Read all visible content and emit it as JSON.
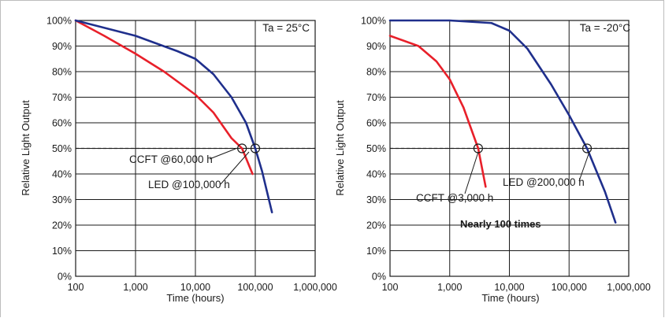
{
  "chart_data": [
    {
      "type": "line",
      "condition_label": "Ta = 25°C",
      "xlabel": "Time (hours)",
      "ylabel": "Relative Light Output",
      "x_scale": "log",
      "xlim": [
        100,
        1000000
      ],
      "ylim": [
        0,
        100
      ],
      "x_ticks": [
        100,
        1000,
        10000,
        100000,
        1000000
      ],
      "x_tick_labels": [
        "100",
        "1,000",
        "10,000",
        "100,000",
        "1,000,000"
      ],
      "y_ticks": [
        0,
        10,
        20,
        30,
        40,
        50,
        60,
        70,
        80,
        90,
        100
      ],
      "y_tick_labels": [
        "0%",
        "10%",
        "20%",
        "30%",
        "40%",
        "50%",
        "60%",
        "70%",
        "80%",
        "90%",
        "100%"
      ],
      "grid": true,
      "reference_line": {
        "y": 50,
        "style": "dashed"
      },
      "series": [
        {
          "name": "CCFT",
          "color": "#e8202a",
          "points": [
            [
              100,
              100
            ],
            [
              300,
              94
            ],
            [
              1000,
              87
            ],
            [
              3000,
              80
            ],
            [
              10000,
              71
            ],
            [
              20000,
              64
            ],
            [
              40000,
              54
            ],
            [
              60000,
              50
            ],
            [
              90000,
              40
            ]
          ]
        },
        {
          "name": "LED",
          "color": "#1f2f8c",
          "points": [
            [
              100,
              100
            ],
            [
              1000,
              94
            ],
            [
              5000,
              88
            ],
            [
              10000,
              85
            ],
            [
              20000,
              79
            ],
            [
              40000,
              70
            ],
            [
              70000,
              60
            ],
            [
              100000,
              50
            ],
            [
              130000,
              41
            ],
            [
              190000,
              25
            ]
          ]
        }
      ],
      "annotations": [
        {
          "text": "CCFT @60,000 h",
          "target": [
            60000,
            50
          ]
        },
        {
          "text": "LED @100,000 h",
          "target": [
            100000,
            50
          ]
        }
      ]
    },
    {
      "type": "line",
      "condition_label": "Ta = -20°C",
      "xlabel": "Time (hours)",
      "ylabel": "Relative Light Output",
      "x_scale": "log",
      "xlim": [
        100,
        1000000
      ],
      "ylim": [
        0,
        100
      ],
      "x_ticks": [
        100,
        1000,
        10000,
        100000,
        1000000
      ],
      "x_tick_labels": [
        "100",
        "1,000",
        "10,000",
        "100,000",
        "1,000,000"
      ],
      "y_ticks": [
        0,
        10,
        20,
        30,
        40,
        50,
        60,
        70,
        80,
        90,
        100
      ],
      "y_tick_labels": [
        "0%",
        "10%",
        "20%",
        "30%",
        "40%",
        "50%",
        "60%",
        "70%",
        "80%",
        "90%",
        "100%"
      ],
      "grid": true,
      "reference_line": {
        "y": 50,
        "style": "dashed"
      },
      "series": [
        {
          "name": "CCFT",
          "color": "#e8202a",
          "points": [
            [
              100,
              94
            ],
            [
              300,
              90
            ],
            [
              600,
              84
            ],
            [
              1000,
              77
            ],
            [
              1700,
              66
            ],
            [
              3000,
              50
            ],
            [
              4000,
              35
            ]
          ]
        },
        {
          "name": "LED",
          "color": "#1f2f8c",
          "points": [
            [
              100,
              100
            ],
            [
              1000,
              100
            ],
            [
              5000,
              99
            ],
            [
              10000,
              96
            ],
            [
              20000,
              89
            ],
            [
              50000,
              75
            ],
            [
              100000,
              63
            ],
            [
              200000,
              50
            ],
            [
              400000,
              33
            ],
            [
              600000,
              21
            ]
          ]
        }
      ],
      "annotations": [
        {
          "text": "CCFT @3,000 h",
          "target": [
            3000,
            50
          ]
        },
        {
          "text": "LED @200,000 h",
          "target": [
            200000,
            50
          ]
        },
        {
          "text": "Nearly 100 times",
          "bold": true
        }
      ]
    }
  ]
}
